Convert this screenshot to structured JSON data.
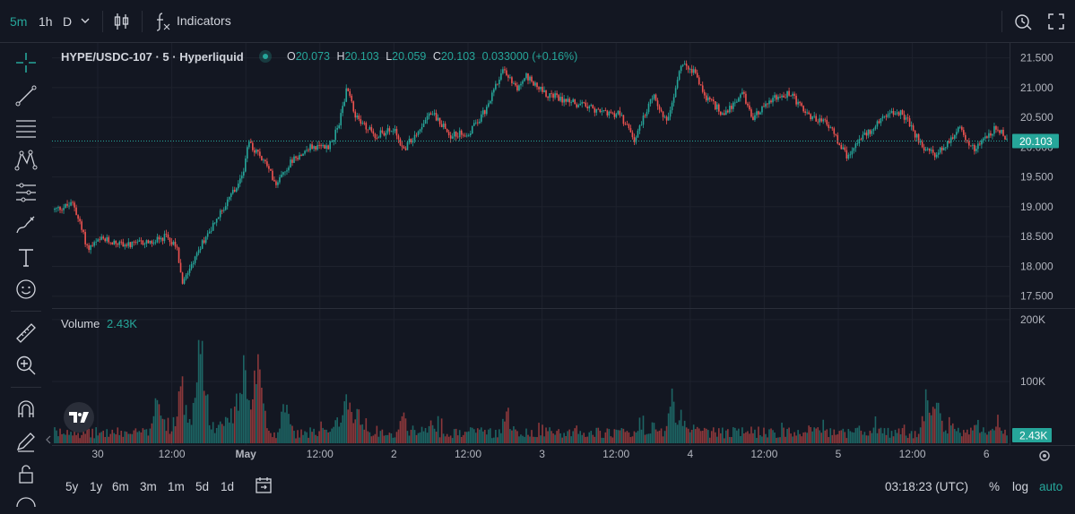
{
  "toolbar": {
    "timeframes": [
      "5m",
      "1h",
      "D"
    ],
    "active_timeframe": "5m",
    "indicators_label": "Indicators"
  },
  "legend": {
    "symbol": "HYPE/USDC-107 · 5 · Hyperliquid",
    "o_label": "O",
    "o_value": "20.073",
    "h_label": "H",
    "h_value": "20.103",
    "l_label": "L",
    "l_value": "20.059",
    "c_label": "C",
    "c_value": "20.103",
    "change": "0.033000 (+0.16%)"
  },
  "volume_legend": {
    "label": "Volume",
    "value": "2.43K"
  },
  "bottom": {
    "ranges": [
      "5y",
      "1y",
      "6m",
      "3m",
      "1m",
      "5d",
      "1d"
    ],
    "clock": "03:18:23 (UTC)",
    "percent": "%",
    "log": "log",
    "auto": "auto"
  },
  "colors": {
    "up": "#26a69a",
    "down": "#ef5350",
    "background": "#131722",
    "grid": "#1e222d"
  },
  "chart_data": {
    "type": "candlestick",
    "price_axis": {
      "ticks": [
        "21.500",
        "21.000",
        "20.500",
        "20.000",
        "19.500",
        "19.000",
        "18.500",
        "18.000",
        "17.500"
      ],
      "range": [
        17.3,
        21.75
      ],
      "current_price": "20.103"
    },
    "volume_axis": {
      "ticks": [
        "200K",
        "100K"
      ],
      "range": [
        0,
        210000
      ],
      "current_volume": "2.43K"
    },
    "time_axis": {
      "labels": [
        "30",
        "12:00",
        "May",
        "12:00",
        "2",
        "12:00",
        "3",
        "12:00",
        "4",
        "12:00",
        "5",
        "12:00",
        "6"
      ]
    },
    "price_path": [
      [
        0.0,
        18.95
      ],
      [
        0.02,
        19.05
      ],
      [
        0.035,
        18.3
      ],
      [
        0.05,
        18.45
      ],
      [
        0.08,
        18.35
      ],
      [
        0.12,
        18.5
      ],
      [
        0.13,
        18.3
      ],
      [
        0.135,
        17.75
      ],
      [
        0.16,
        18.5
      ],
      [
        0.18,
        19.0
      ],
      [
        0.2,
        19.5
      ],
      [
        0.205,
        20.1
      ],
      [
        0.22,
        19.8
      ],
      [
        0.235,
        19.4
      ],
      [
        0.25,
        19.75
      ],
      [
        0.27,
        20.0
      ],
      [
        0.29,
        20.0
      ],
      [
        0.3,
        20.3
      ],
      [
        0.31,
        21.0
      ],
      [
        0.32,
        20.5
      ],
      [
        0.34,
        20.2
      ],
      [
        0.36,
        20.3
      ],
      [
        0.37,
        19.95
      ],
      [
        0.39,
        20.4
      ],
      [
        0.4,
        20.6
      ],
      [
        0.42,
        20.2
      ],
      [
        0.44,
        20.25
      ],
      [
        0.46,
        20.7
      ],
      [
        0.475,
        21.3
      ],
      [
        0.49,
        21.0
      ],
      [
        0.5,
        21.2
      ],
      [
        0.52,
        20.9
      ],
      [
        0.55,
        20.75
      ],
      [
        0.58,
        20.6
      ],
      [
        0.6,
        20.55
      ],
      [
        0.615,
        20.1
      ],
      [
        0.635,
        20.9
      ],
      [
        0.65,
        20.4
      ],
      [
        0.665,
        21.45
      ],
      [
        0.68,
        21.25
      ],
      [
        0.69,
        20.85
      ],
      [
        0.71,
        20.55
      ],
      [
        0.73,
        20.9
      ],
      [
        0.74,
        20.5
      ],
      [
        0.76,
        20.8
      ],
      [
        0.78,
        20.9
      ],
      [
        0.8,
        20.5
      ],
      [
        0.82,
        20.4
      ],
      [
        0.84,
        19.85
      ],
      [
        0.85,
        20.05
      ],
      [
        0.86,
        20.2
      ],
      [
        0.88,
        20.5
      ],
      [
        0.895,
        20.6
      ],
      [
        0.905,
        20.45
      ],
      [
        0.92,
        20.0
      ],
      [
        0.935,
        19.85
      ],
      [
        0.95,
        20.15
      ],
      [
        0.96,
        20.3
      ],
      [
        0.975,
        19.95
      ],
      [
        0.99,
        20.2
      ],
      [
        1.0,
        20.35
      ],
      [
        1.01,
        20.1
      ]
    ],
    "volume_spikes": [
      [
        0.11,
        0.45
      ],
      [
        0.135,
        0.6
      ],
      [
        0.155,
        1.0
      ],
      [
        0.18,
        0.3
      ],
      [
        0.195,
        0.55
      ],
      [
        0.2,
        0.72
      ],
      [
        0.215,
        0.78
      ],
      [
        0.245,
        0.4
      ],
      [
        0.3,
        0.28
      ],
      [
        0.31,
        0.52
      ],
      [
        0.32,
        0.35
      ],
      [
        0.37,
        0.25
      ],
      [
        0.4,
        0.2
      ],
      [
        0.45,
        0.2
      ],
      [
        0.48,
        0.32
      ],
      [
        0.55,
        0.12
      ],
      [
        0.62,
        0.16
      ],
      [
        0.635,
        0.18
      ],
      [
        0.655,
        0.5
      ],
      [
        0.665,
        0.3
      ],
      [
        0.68,
        0.22
      ],
      [
        0.73,
        0.15
      ],
      [
        0.8,
        0.15
      ],
      [
        0.85,
        0.2
      ],
      [
        0.9,
        0.1
      ],
      [
        0.925,
        0.45
      ],
      [
        0.935,
        0.47
      ],
      [
        0.95,
        0.2
      ],
      [
        0.975,
        0.2
      ],
      [
        0.985,
        0.14
      ],
      [
        1.0,
        0.16
      ],
      [
        1.01,
        0.1
      ]
    ]
  }
}
